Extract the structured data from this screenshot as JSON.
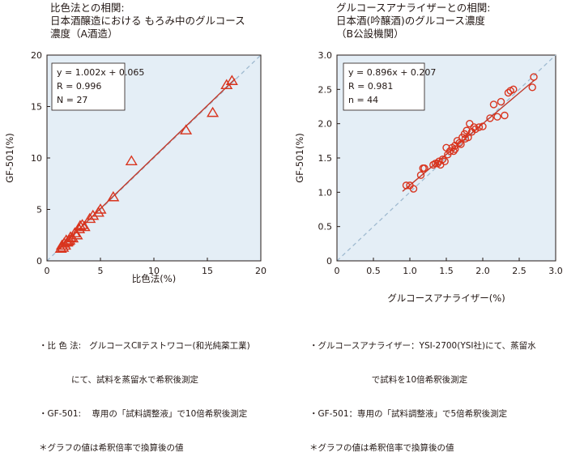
{
  "chart_data": [
    {
      "type": "scatter",
      "title": [
        "比色法との相関:",
        "日本酒醸造における もろみ中のグルコース",
        "濃度（A酒造）"
      ],
      "xlabel": "比色法(%)",
      "ylabel": "GF-501(%)",
      "xlim": [
        0,
        20
      ],
      "ylim": [
        0,
        20
      ],
      "xticks": [
        0,
        5,
        10,
        15,
        20
      ],
      "yticks": [
        0,
        5,
        10,
        15,
        20
      ],
      "tick_labels_x": [
        "0",
        "5",
        "10",
        "15",
        "20"
      ],
      "tick_labels_y": [
        "0",
        "5",
        "10",
        "15",
        "20"
      ],
      "marker": "triangle",
      "regression": {
        "slope": 1.002,
        "intercept": 0.065
      },
      "identity_line": true,
      "stats": [
        "y = 1.002x + 0.065",
        "R = 0.996",
        "N = 27"
      ],
      "points": [
        [
          1.3,
          1.2
        ],
        [
          1.4,
          1.5
        ],
        [
          1.5,
          1.3
        ],
        [
          1.6,
          1.7
        ],
        [
          1.7,
          1.5
        ],
        [
          1.8,
          2.0
        ],
        [
          2.0,
          1.9
        ],
        [
          2.2,
          2.3
        ],
        [
          2.4,
          2.2
        ],
        [
          2.6,
          2.7
        ],
        [
          2.8,
          2.5
        ],
        [
          3.0,
          3.1
        ],
        [
          3.3,
          3.5
        ],
        [
          3.5,
          3.3
        ],
        [
          4.0,
          4.1
        ],
        [
          4.3,
          4.4
        ],
        [
          4.8,
          4.7
        ],
        [
          5.0,
          5.0
        ],
        [
          6.2,
          6.2
        ],
        [
          7.9,
          9.7
        ],
        [
          13.0,
          12.7
        ],
        [
          15.5,
          14.4
        ],
        [
          16.8,
          17.1
        ],
        [
          17.3,
          17.5
        ],
        [
          2.1,
          2.0
        ],
        [
          3.1,
          3.4
        ],
        [
          1.9,
          1.8
        ]
      ]
    },
    {
      "type": "scatter",
      "title": [
        "グルコースアナライザーとの相関:",
        "日本酒(吟醸酒)のグルコース濃度",
        "（B公設機関）"
      ],
      "xlabel": "グルコースアナライザー(%)",
      "ylabel": "GF-501(%)",
      "xlim": [
        0,
        3.0
      ],
      "ylim": [
        0,
        3.0
      ],
      "xticks": [
        0,
        0.5,
        1.0,
        1.5,
        2.0,
        2.5,
        3.0
      ],
      "yticks": [
        0,
        0.5,
        1.0,
        1.5,
        2.0,
        2.5,
        3.0
      ],
      "tick_labels_x": [
        "0",
        "0.5",
        "1.0",
        "1.5",
        "2.0",
        "2.5",
        "3.0"
      ],
      "tick_labels_y": [
        "0",
        "0.5",
        "1.0",
        "1.5",
        "2.0",
        "2.5",
        "3.0"
      ],
      "marker": "circle",
      "regression": {
        "slope": 0.896,
        "intercept": 0.207
      },
      "identity_line": true,
      "stats": [
        "y = 0.896x + 0.207",
        "R = 0.981",
        "n = 44"
      ],
      "points": [
        [
          0.95,
          1.1
        ],
        [
          1.0,
          1.1
        ],
        [
          1.05,
          1.05
        ],
        [
          1.15,
          1.25
        ],
        [
          1.18,
          1.35
        ],
        [
          1.2,
          1.35
        ],
        [
          1.32,
          1.4
        ],
        [
          1.35,
          1.42
        ],
        [
          1.4,
          1.45
        ],
        [
          1.42,
          1.4
        ],
        [
          1.45,
          1.48
        ],
        [
          1.5,
          1.65
        ],
        [
          1.52,
          1.55
        ],
        [
          1.55,
          1.6
        ],
        [
          1.58,
          1.65
        ],
        [
          1.6,
          1.6
        ],
        [
          1.62,
          1.68
        ],
        [
          1.65,
          1.75
        ],
        [
          1.68,
          1.72
        ],
        [
          1.7,
          1.7
        ],
        [
          1.72,
          1.8
        ],
        [
          1.75,
          1.85
        ],
        [
          1.78,
          1.9
        ],
        [
          1.8,
          1.8
        ],
        [
          1.82,
          2.0
        ],
        [
          1.85,
          1.88
        ],
        [
          1.88,
          1.95
        ],
        [
          1.9,
          1.92
        ],
        [
          1.95,
          1.95
        ],
        [
          2.0,
          1.96
        ],
        [
          2.1,
          2.08
        ],
        [
          2.15,
          2.28
        ],
        [
          2.2,
          2.1
        ],
        [
          2.25,
          2.32
        ],
        [
          2.3,
          2.12
        ],
        [
          2.35,
          2.45
        ],
        [
          2.38,
          2.48
        ],
        [
          2.42,
          2.5
        ],
        [
          2.68,
          2.53
        ],
        [
          2.7,
          2.68
        ],
        [
          1.48,
          1.45
        ],
        [
          1.62,
          1.63
        ],
        [
          1.38,
          1.42
        ],
        [
          1.76,
          1.78
        ]
      ]
    }
  ],
  "notes_left": [
    "・比 色 法:   グルコースCⅡテストワコー(和光純薬工業)",
    "            にて、試料を蒸留水で希釈後測定",
    "・GF-501:    専用の「試料調整液」で10倍希釈後測定",
    "＊グラフの値は希釈倍率で換算後の値"
  ],
  "notes_right": [
    "・グルコースアナライザー：YSI-2700(YSI社)にて、蒸留水",
    "                       で試料を10倍希釈後測定",
    "・GF-501：専用の「試料調整液」で5倍希釈後測定",
    "＊グラフの値は希釈倍率で換算後の値"
  ],
  "colors": {
    "plot_bg": "#e4eef6",
    "marker": "#d9341e",
    "regression": "#c0392b",
    "identity": "#9fbad0",
    "axis": "#231815"
  }
}
